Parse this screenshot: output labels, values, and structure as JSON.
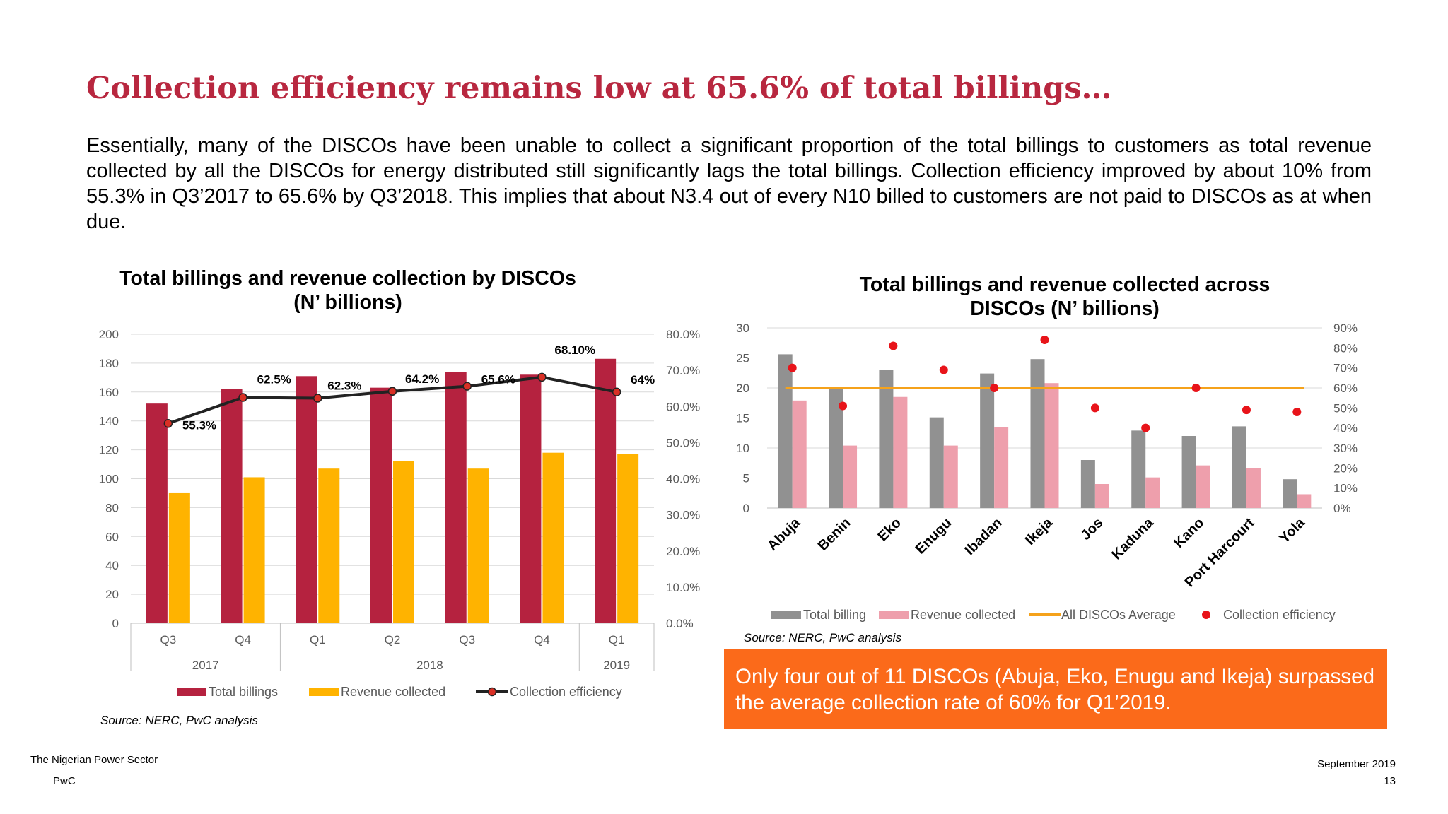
{
  "title": "Collection efficiency remains low at 65.6% of total billings…",
  "paragraph": "Essentially, many of the DISCOs have been unable to collect a significant proportion of the total billings to customers as total revenue collected by all the DISCOs for energy distributed still significantly lags the total billings. Collection efficiency improved by about 10% from 55.3% in Q3’2017 to 65.6% by Q3’2018. This implies that about N3.4 out of every N10 billed to customers are not paid to DISCOs as at when due.",
  "left_chart": {
    "title_line1": "Total billings and revenue collection by DISCOs",
    "title_line2": "(N’ billions)",
    "source": "Source: NERC, PwC analysis"
  },
  "right_chart": {
    "title_line1": "Total billings and revenue collected across",
    "title_line2": "DISCOs (N’ billions)",
    "source": "Source: NERC, PwC analysis"
  },
  "callout": "Only four out of 11 DISCOs (Abuja, Eko, Enugu and Ikeja) surpassed the average collection rate of 60% for Q1’2019.",
  "footer": {
    "left_line1": "The Nigerian Power Sector",
    "left_line2": "PwC",
    "right_line1": "September 2019",
    "right_line2": "13"
  },
  "colors": {
    "title": "#b8273f",
    "total_billings": "#b5223f",
    "revenue_collected": "#ffb300",
    "collection_line": "#222222",
    "collection_marker": "#d93025",
    "disco_billing": "#919191",
    "disco_revenue": "#ee9fac",
    "average_line": "#f5a21b",
    "efficiency_dot": "#e8141a",
    "callout_bg": "#fb6a1a"
  },
  "chart_data": [
    {
      "type": "bar",
      "categories": [
        "Q3",
        "Q4",
        "Q1",
        "Q2",
        "Q3",
        "Q4",
        "Q1"
      ],
      "groups": [
        {
          "label": "2017",
          "span": 2
        },
        {
          "label": "2018",
          "span": 4
        },
        {
          "label": "2019",
          "span": 1
        }
      ],
      "series": [
        {
          "name": "Total billings",
          "type": "bar",
          "axis": "left",
          "values": [
            152,
            162,
            171,
            163,
            174,
            172,
            183
          ]
        },
        {
          "name": "Revenue collected",
          "type": "bar",
          "axis": "left",
          "values": [
            90,
            101,
            107,
            112,
            107,
            118,
            117
          ]
        },
        {
          "name": "Collection efficiency",
          "type": "line",
          "axis": "right",
          "values": [
            55.3,
            62.5,
            62.3,
            64.2,
            65.6,
            68.1,
            64
          ],
          "labels": [
            "55.3%",
            "62.5%",
            "62.3%",
            "64.2%",
            "65.6%",
            "68.10%",
            "64%"
          ]
        }
      ],
      "ylim": [
        0,
        200
      ],
      "yticks": [
        "0",
        "20",
        "40",
        "60",
        "80",
        "100",
        "120",
        "140",
        "160",
        "180",
        "200"
      ],
      "y2lim": [
        0,
        80
      ],
      "y2ticks": [
        "0.0%",
        "10.0%",
        "20.0%",
        "30.0%",
        "40.0%",
        "50.0%",
        "60.0%",
        "70.0%",
        "80.0%"
      ],
      "grid": true,
      "legend": "bottom"
    },
    {
      "type": "bar",
      "categories": [
        "Abuja",
        "Benin",
        "Eko",
        "Enugu",
        "Ibadan",
        "Ikeja",
        "Jos",
        "Kaduna",
        "Kano",
        "Port Harcourt",
        "Yola"
      ],
      "series": [
        {
          "name": "Total billing",
          "type": "bar",
          "axis": "left",
          "values": [
            25.6,
            20,
            23,
            15.1,
            22.4,
            24.8,
            8,
            12.9,
            12,
            13.6,
            4.8
          ]
        },
        {
          "name": "Revenue collected",
          "type": "bar",
          "axis": "left",
          "values": [
            17.9,
            10.4,
            18.5,
            10.4,
            13.5,
            20.8,
            4,
            5.1,
            7.1,
            6.7,
            2.3
          ]
        },
        {
          "name": "All DISCOs Average",
          "type": "line",
          "axis": "right",
          "values": [
            60,
            60,
            60,
            60,
            60,
            60,
            60,
            60,
            60,
            60,
            60
          ]
        },
        {
          "name": "Collection efficiency",
          "type": "scatter",
          "axis": "right",
          "values": [
            70,
            51,
            81,
            69,
            60,
            84,
            50,
            40,
            60,
            49,
            48
          ]
        }
      ],
      "ylim": [
        0,
        30
      ],
      "yticks": [
        "0",
        "5",
        "10",
        "15",
        "20",
        "25",
        "30"
      ],
      "y2lim": [
        0,
        90
      ],
      "y2ticks": [
        "0%",
        "10%",
        "20%",
        "30%",
        "40%",
        "50%",
        "60%",
        "70%",
        "80%",
        "90%"
      ],
      "grid": true,
      "legend": "bottom"
    }
  ]
}
